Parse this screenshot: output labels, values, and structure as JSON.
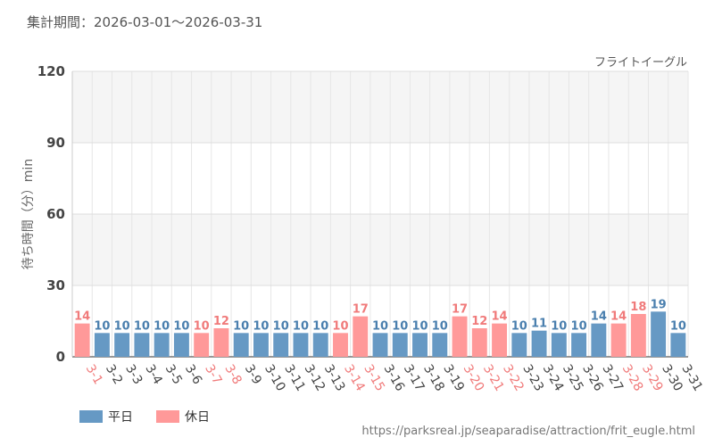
{
  "period_label": "集計期間：2026-03-01～2026-03-31",
  "source_url": "https://parksreal.jp/seaparadise/attraction/frit_eugle.html",
  "colors": {
    "weekday": "#6699c4",
    "holiday": "#ff9999",
    "weekday_text": "#4a7fae",
    "holiday_text": "#f07a7a"
  },
  "chart_data": {
    "type": "bar",
    "subtitle": "フライトイーグル",
    "ylabel": "待ち時間（分）min",
    "ylim": [
      0,
      120
    ],
    "yticks": [
      "0",
      "30",
      "60",
      "90",
      "120"
    ],
    "categories": [
      "3-1",
      "3-2",
      "3-3",
      "3-4",
      "3-5",
      "3-6",
      "3-7",
      "3-8",
      "3-9",
      "3-10",
      "3-11",
      "3-12",
      "3-13",
      "3-14",
      "3-15",
      "3-16",
      "3-17",
      "3-18",
      "3-19",
      "3-20",
      "3-21",
      "3-22",
      "3-23",
      "3-24",
      "3-25",
      "3-26",
      "3-27",
      "3-28",
      "3-29",
      "3-30",
      "3-31"
    ],
    "values": [
      14,
      10,
      10,
      10,
      10,
      10,
      10,
      12,
      10,
      10,
      10,
      10,
      10,
      10,
      17,
      10,
      10,
      10,
      10,
      17,
      12,
      14,
      10,
      11,
      10,
      10,
      14,
      14,
      18,
      19,
      10
    ],
    "day_type": [
      "holiday",
      "weekday",
      "weekday",
      "weekday",
      "weekday",
      "weekday",
      "holiday",
      "holiday",
      "weekday",
      "weekday",
      "weekday",
      "weekday",
      "weekday",
      "holiday",
      "holiday",
      "weekday",
      "weekday",
      "weekday",
      "weekday",
      "holiday",
      "holiday",
      "holiday",
      "weekday",
      "weekday",
      "weekday",
      "weekday",
      "weekday",
      "holiday",
      "holiday",
      "weekday",
      "weekday"
    ],
    "legend": [
      {
        "key": "weekday",
        "label": "平日"
      },
      {
        "key": "holiday",
        "label": "休日"
      }
    ],
    "grid": true
  }
}
